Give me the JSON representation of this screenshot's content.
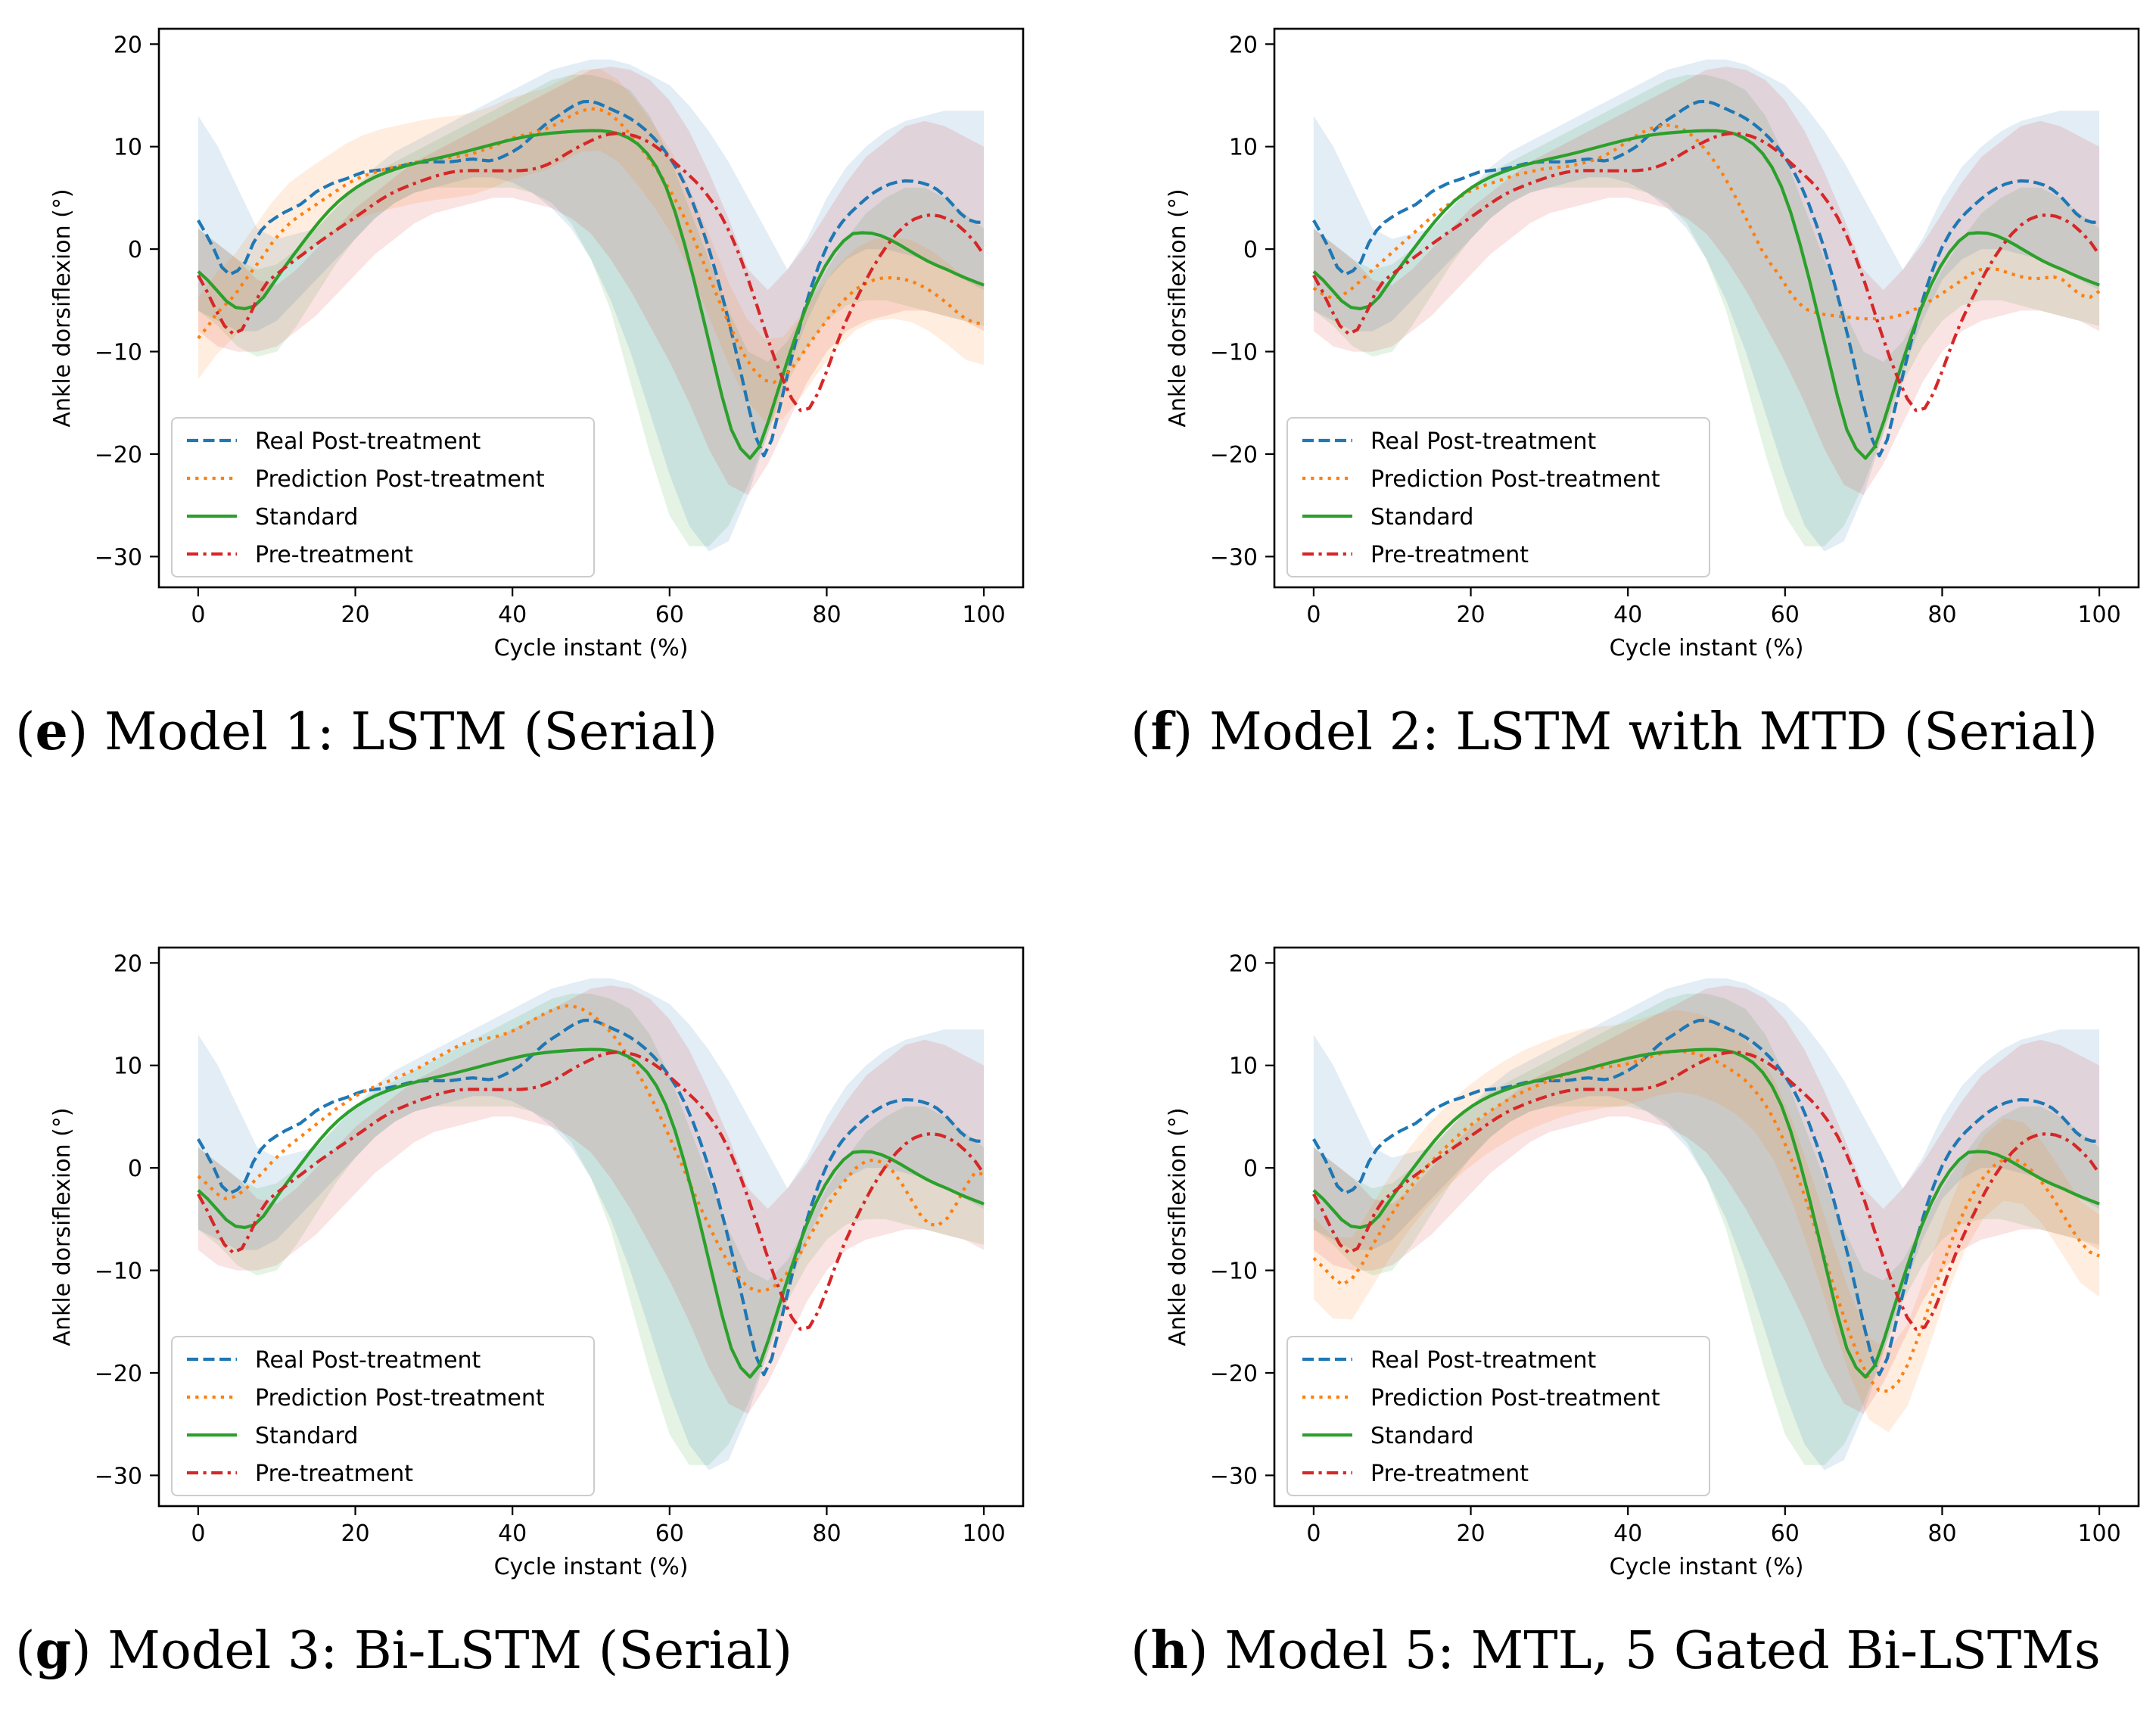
{
  "colors": {
    "real": "#1f77b4",
    "prediction": "#ff7f0e",
    "standard": "#2ca02c",
    "pre": "#d62728"
  },
  "shared": {
    "x": [
      0,
      1,
      2,
      3,
      4,
      5,
      6,
      7,
      8,
      9,
      10,
      11,
      12,
      13,
      14,
      15,
      16,
      17,
      18,
      19,
      20,
      21,
      22,
      23,
      24,
      25,
      26,
      27,
      28,
      29,
      30,
      31,
      32,
      33,
      34,
      35,
      36,
      37,
      38,
      39,
      40,
      41,
      42,
      43,
      44,
      45,
      46,
      47,
      48,
      49,
      50,
      51,
      52,
      53,
      54,
      55,
      56,
      57,
      58,
      59,
      60,
      61,
      62,
      63,
      64,
      65,
      66,
      67,
      68,
      69,
      70,
      71,
      72,
      73,
      74,
      75,
      76,
      77,
      78,
      79,
      80,
      81,
      82,
      83,
      84,
      85,
      86,
      87,
      88,
      89,
      90,
      91,
      92,
      93,
      94,
      95,
      96,
      97,
      98,
      99,
      100
    ],
    "real": [
      2.81,
      1.47,
      -0.01,
      -1.76,
      -2.48,
      -2.12,
      -1.27,
      0.57,
      1.81,
      2.61,
      3.14,
      3.6,
      3.97,
      4.36,
      4.96,
      5.58,
      6.0,
      6.38,
      6.66,
      6.91,
      7.22,
      7.5,
      7.62,
      7.71,
      7.79,
      7.94,
      8.14,
      8.34,
      8.46,
      8.51,
      8.52,
      8.5,
      8.51,
      8.6,
      8.73,
      8.78,
      8.69,
      8.61,
      8.76,
      9.1,
      9.49,
      9.97,
      10.63,
      11.36,
      12.05,
      12.6,
      13.09,
      13.62,
      14.09,
      14.39,
      14.42,
      14.2,
      13.86,
      13.5,
      13.16,
      12.74,
      12.21,
      11.58,
      10.84,
      9.98,
      8.96,
      7.73,
      6.23,
      4.44,
      2.38,
      0.05,
      -2.57,
      -5.43,
      -8.52,
      -11.81,
      -15.23,
      -18.38,
      -20.17,
      -18.61,
      -15.49,
      -12.29,
      -9.18,
      -6.31,
      -3.75,
      -1.57,
      0.21,
      1.59,
      2.67,
      3.53,
      4.26,
      4.93,
      5.51,
      5.98,
      6.33,
      6.55,
      6.66,
      6.62,
      6.48,
      6.24,
      5.84,
      5.2,
      4.37,
      3.5,
      2.88,
      2.63,
      2.58
    ],
    "standard": [
      -2.18,
      -3.02,
      -4.03,
      -5.06,
      -5.69,
      -5.82,
      -5.56,
      -4.68,
      -3.36,
      -2.06,
      -0.8,
      0.42,
      1.61,
      2.74,
      3.77,
      4.66,
      5.42,
      6.07,
      6.61,
      7.07,
      7.45,
      7.78,
      8.07,
      8.32,
      8.55,
      8.76,
      8.96,
      9.17,
      9.39,
      9.62,
      9.86,
      10.1,
      10.34,
      10.57,
      10.78,
      10.97,
      11.12,
      11.24,
      11.34,
      11.41,
      11.48,
      11.53,
      11.56,
      11.55,
      11.46,
      11.25,
      10.86,
      10.25,
      9.33,
      8.0,
      6.12,
      3.6,
      0.48,
      -3.0,
      -6.74,
      -10.57,
      -14.34,
      -17.61,
      -19.47,
      -20.41,
      -19.28,
      -16.7,
      -13.77,
      -10.9,
      -8.15,
      -5.64,
      -3.49,
      -1.71,
      -0.29,
      0.79,
      1.52,
      1.6,
      1.55,
      1.31,
      0.91,
      0.41,
      -0.13,
      -0.67,
      -1.17,
      -1.6,
      -1.98,
      -2.4,
      -2.8,
      -3.16,
      -3.51
    ],
    "pre": [
      -2.56,
      -4.12,
      -5.88,
      -7.48,
      -8.27,
      -7.87,
      -6.29,
      -4.39,
      -3.12,
      -2.45,
      -1.77,
      -1.13,
      -0.5,
      0.14,
      0.77,
      1.38,
      1.97,
      2.53,
      3.11,
      3.7,
      4.31,
      4.88,
      5.38,
      5.79,
      6.15,
      6.48,
      6.78,
      7.07,
      7.32,
      7.51,
      7.62,
      7.66,
      7.66,
      7.65,
      7.64,
      7.64,
      7.65,
      7.66,
      7.74,
      7.93,
      8.25,
      8.68,
      9.2,
      9.71,
      10.16,
      10.58,
      10.95,
      11.2,
      11.3,
      11.24,
      11.05,
      10.72,
      10.25,
      9.63,
      8.9,
      8.14,
      7.39,
      6.58,
      5.62,
      4.48,
      3.11,
      1.43,
      -0.59,
      -2.93,
      -5.5,
      -8.11,
      -10.59,
      -12.77,
      -14.59,
      -15.74,
      -15.54,
      -14.05,
      -11.9,
      -9.57,
      -7.43,
      -5.56,
      -3.84,
      -2.23,
      -0.79,
      0.46,
      1.5,
      2.33,
      2.91,
      3.24,
      3.34,
      3.21,
      2.89,
      2.35,
      1.6,
      0.66,
      -0.56
    ],
    "band_real": {
      "upper": [
        13.0,
        10.0,
        6.0,
        2.0,
        1.0,
        1.5,
        2.0,
        4.0,
        6.0,
        8.0,
        9.5,
        10.5,
        11.5,
        12.5,
        13.5,
        14.5,
        15.5,
        16.5,
        17.5,
        18.0,
        18.5,
        18.5,
        18.0,
        17.0,
        16.0,
        14.0,
        11.5,
        8.5,
        5.0,
        1.5,
        -2.0,
        1.0,
        5.0,
        8.0,
        10.0,
        11.5,
        12.5,
        13.0,
        13.5,
        13.5,
        13.5,
        13.5,
        13.5
      ],
      "lower": [
        -6.0,
        -7.0,
        -8.0,
        -8.0,
        -7.0,
        -5.0,
        -3.0,
        -1.0,
        1.0,
        3.0,
        4.5,
        5.5,
        6.0,
        6.5,
        7.0,
        7.0,
        6.5,
        5.5,
        4.0,
        2.0,
        -1.0,
        -5.0,
        -10.0,
        -16.0,
        -22.0,
        -27.0,
        -29.5,
        -28.5,
        -24.0,
        -18.0,
        -12.0,
        -7.0,
        -3.0,
        -1.0,
        0.0,
        0.0,
        -0.5,
        -1.0,
        -2.0,
        -3.0,
        -4.0,
        -5.5,
        -7.5
      ]
    },
    "band_standard": {
      "upper": [
        2.0,
        0.5,
        -1.0,
        -2.0,
        -1.5,
        0.0,
        2.0,
        4.0,
        6.0,
        7.5,
        8.5,
        9.5,
        10.5,
        11.5,
        12.5,
        13.5,
        14.5,
        15.5,
        16.5,
        17.0,
        17.0,
        16.5,
        15.5,
        13.0,
        9.0,
        4.0,
        -1.0,
        -6.0,
        -10.0,
        -11.0,
        -9.0,
        -5.5,
        -2.0,
        1.0,
        3.5,
        5.0,
        6.0,
        6.0,
        5.0,
        3.5,
        2.0,
        1.0,
        0.5
      ],
      "lower": [
        -6.0,
        -7.5,
        -9.5,
        -10.5,
        -10.0,
        -7.5,
        -4.5,
        -1.5,
        1.0,
        3.0,
        4.5,
        5.5,
        6.0,
        6.0,
        6.0,
        6.0,
        6.0,
        5.5,
        4.5,
        2.5,
        -1.0,
        -6.0,
        -13.0,
        -20.0,
        -26.0,
        -29.0,
        -29.0,
        -27.0,
        -23.0,
        -18.0,
        -13.0,
        -9.5,
        -7.0,
        -5.5,
        -5.0,
        -5.0,
        -5.5,
        -6.0,
        -6.5,
        -7.0,
        -7.5,
        -8.0,
        -8.5
      ]
    },
    "band_pre": {
      "upper": [
        2.0,
        0.5,
        -1.0,
        -3.0,
        -3.5,
        -2.0,
        0.0,
        2.0,
        4.0,
        5.5,
        7.0,
        8.5,
        9.5,
        10.5,
        11.5,
        12.5,
        13.5,
        14.5,
        15.5,
        16.5,
        17.5,
        17.8,
        17.5,
        16.5,
        14.5,
        11.5,
        7.5,
        3.0,
        -2.0,
        -4.0,
        -2.0,
        0.5,
        3.5,
        6.5,
        9.0,
        10.5,
        12.0,
        12.5,
        12.0,
        11.0,
        10.0,
        9.0,
        8.5
      ],
      "lower": [
        -8.0,
        -9.5,
        -10.0,
        -10.0,
        -9.5,
        -8.0,
        -6.5,
        -4.5,
        -2.5,
        -0.5,
        1.0,
        2.5,
        3.5,
        4.0,
        4.5,
        5.0,
        5.0,
        4.5,
        4.0,
        3.0,
        1.5,
        -1.0,
        -4.0,
        -7.5,
        -11.0,
        -15.0,
        -19.5,
        -23.0,
        -24.0,
        -21.0,
        -17.0,
        -13.0,
        -10.0,
        -8.0,
        -7.0,
        -6.5,
        -6.0,
        -6.0,
        -6.5,
        -7.0,
        -8.0,
        -9.0,
        -10.0
      ]
    },
    "band_x": [
      0,
      2.5,
      5,
      7.5,
      10,
      12.5,
      15,
      17.5,
      20,
      22.5,
      25,
      27.5,
      30,
      32.5,
      35,
      37.5,
      40,
      42.5,
      45,
      47.5,
      50,
      52.5,
      55,
      57.5,
      60,
      62.5,
      65,
      67.5,
      70,
      72.5,
      75,
      77.5,
      80,
      82.5,
      85,
      87.5,
      90,
      92.5,
      95,
      97.5,
      100,
      100,
      100
    ]
  },
  "chart_data": [
    {
      "type": "line",
      "panel_letter": "e",
      "caption": ") Model 1: LSTM (Serial)",
      "xlabel": "Cycle instant (%)",
      "ylabel": "Ankle dorsiflexion (°)",
      "xlim": [
        -5,
        105
      ],
      "ylim": [
        -33,
        21.5
      ],
      "xticks": [
        0,
        20,
        40,
        60,
        80,
        100
      ],
      "yticks": [
        -30,
        -20,
        -10,
        0,
        10,
        20
      ],
      "tick_labels_x": [
        "0",
        "20",
        "40",
        "60",
        "80",
        "100"
      ],
      "tick_labels_y": [
        "−30",
        "−20",
        "−10",
        "0",
        "10",
        "20"
      ],
      "legend": [
        "Real Post-treatment",
        "Prediction Post-treatment",
        "Standard",
        "Pre-treatment"
      ],
      "legend_position": "lower-left",
      "prediction": [
        -8.7,
        -7.6,
        -6.3,
        -5.4,
        -4.5,
        -3.2,
        -2.0,
        -0.8,
        0.5,
        1.6,
        2.5,
        3.2,
        3.8,
        4.4,
        5.0,
        5.6,
        6.2,
        6.7,
        7.1,
        7.4,
        7.7,
        7.9,
        8.1,
        8.3,
        8.5,
        8.7,
        8.8,
        8.9,
        9.0,
        9.1,
        9.3,
        9.6,
        9.9,
        10.3,
        10.7,
        11.0,
        11.2,
        11.4,
        11.7,
        12.1,
        12.6,
        13.1,
        13.5,
        13.7,
        13.6,
        13.2,
        12.5,
        11.5,
        10.4,
        9.2,
        8.0,
        6.7,
        5.2,
        3.5,
        1.5,
        -0.6,
        -2.8,
        -5.0,
        -7.1,
        -9.0,
        -10.7,
        -12.0,
        -12.8,
        -13.0,
        -12.6,
        -11.6,
        -10.4,
        -9.1,
        -7.9,
        -6.7,
        -5.6,
        -4.7,
        -3.9,
        -3.4,
        -3.0,
        -2.8,
        -2.8,
        -2.9,
        -3.1,
        -3.5,
        -4.0,
        -4.6,
        -5.3,
        -6.1,
        -6.8,
        -7.2,
        -7.3
      ],
      "bands": {
        "real": true,
        "prediction": true,
        "standard": true,
        "pre": true
      }
    },
    {
      "type": "line",
      "panel_letter": "f",
      "caption": ") Model 2: LSTM with MTD (Serial)",
      "xlabel": "Cycle instant (%)",
      "ylabel": "Ankle dorsiflexion (°)",
      "xlim": [
        -5,
        105
      ],
      "ylim": [
        -33,
        21.5
      ],
      "xticks": [
        0,
        20,
        40,
        60,
        80,
        100
      ],
      "yticks": [
        -30,
        -20,
        -10,
        0,
        10,
        20
      ],
      "tick_labels_x": [
        "0",
        "20",
        "40",
        "60",
        "80",
        "100"
      ],
      "tick_labels_y": [
        "−30",
        "−20",
        "−10",
        "0",
        "10",
        "20"
      ],
      "legend": [
        "Real Post-treatment",
        "Prediction Post-treatment",
        "Standard",
        "Pre-treatment"
      ],
      "legend_position": "lower-left",
      "prediction": [
        -3.8,
        -4.4,
        -4.8,
        -4.6,
        -4.0,
        -3.2,
        -2.4,
        -1.6,
        -0.8,
        0.0,
        0.8,
        1.6,
        2.4,
        3.2,
        3.9,
        4.5,
        5.1,
        5.6,
        6.0,
        6.3,
        6.6,
        6.9,
        7.2,
        7.4,
        7.6,
        7.8,
        7.9,
        8.0,
        8.1,
        8.3,
        8.5,
        8.8,
        9.2,
        9.7,
        10.3,
        10.9,
        11.4,
        11.8,
        12.0,
        12.1,
        11.9,
        11.4,
        10.6,
        9.6,
        8.4,
        7.0,
        5.4,
        3.6,
        1.8,
        0.0,
        -1.4,
        -2.6,
        -4.0,
        -5.2,
        -5.9,
        -6.2,
        -6.4,
        -6.5,
        -6.6,
        -6.7,
        -6.8,
        -6.8,
        -6.8,
        -6.7,
        -6.5,
        -6.2,
        -5.8,
        -5.3,
        -4.8,
        -4.2,
        -3.6,
        -3.0,
        -2.4,
        -2.0,
        -1.9,
        -2.0,
        -2.3,
        -2.6,
        -2.8,
        -2.9,
        -2.8,
        -2.7,
        -3.0,
        -3.8,
        -4.5,
        -4.7,
        -4.1
      ],
      "bands": {
        "real": true,
        "prediction": false,
        "standard": true,
        "pre": true
      }
    },
    {
      "type": "line",
      "panel_letter": "g",
      "caption": ") Model 3: Bi-LSTM (Serial)",
      "xlabel": "Cycle instant (%)",
      "ylabel": "Ankle dorsiflexion (°)",
      "xlim": [
        -5,
        105
      ],
      "ylim": [
        -33,
        21.5
      ],
      "xticks": [
        0,
        20,
        40,
        60,
        80,
        100
      ],
      "yticks": [
        -30,
        -20,
        -10,
        0,
        10,
        20
      ],
      "tick_labels_x": [
        "0",
        "20",
        "40",
        "60",
        "80",
        "100"
      ],
      "tick_labels_y": [
        "−30",
        "−20",
        "−10",
        "0",
        "10",
        "20"
      ],
      "legend": [
        "Real Post-treatment",
        "Prediction Post-treatment",
        "Standard",
        "Pre-treatment"
      ],
      "legend_position": "lower-left",
      "prediction": [
        -0.8,
        -1.6,
        -2.5,
        -3.0,
        -2.8,
        -2.2,
        -1.4,
        -0.5,
        0.5,
        1.4,
        2.2,
        2.9,
        3.6,
        4.3,
        5.0,
        5.7,
        6.3,
        6.9,
        7.4,
        7.8,
        8.2,
        8.5,
        8.9,
        9.3,
        9.7,
        10.2,
        10.7,
        11.2,
        11.7,
        12.1,
        12.4,
        12.6,
        12.7,
        12.9,
        13.2,
        13.6,
        14.1,
        14.6,
        15.1,
        15.5,
        15.8,
        15.8,
        15.5,
        15.0,
        14.3,
        13.4,
        12.3,
        11.0,
        9.5,
        7.9,
        6.1,
        4.2,
        2.2,
        0.2,
        -1.9,
        -3.9,
        -5.8,
        -7.6,
        -9.2,
        -10.5,
        -11.5,
        -12.0,
        -12.0,
        -11.6,
        -10.8,
        -9.6,
        -8.2,
        -6.6,
        -5.0,
        -3.5,
        -2.2,
        -1.0,
        0.0,
        0.6,
        0.8,
        0.5,
        -0.3,
        -1.5,
        -3.0,
        -4.5,
        -5.5,
        -5.6,
        -4.9,
        -3.5,
        -1.8,
        -0.5,
        -0.6
      ],
      "bands": {
        "real": true,
        "prediction": false,
        "standard": true,
        "pre": true
      }
    },
    {
      "type": "line",
      "panel_letter": "h",
      "caption": ") Model 5: MTL, 5 Gated Bi-LSTMs",
      "xlabel": "Cycle instant (%)",
      "ylabel": "Ankle dorsiflexion (°)",
      "xlim": [
        -5,
        105
      ],
      "ylim": [
        -33,
        21.5
      ],
      "xticks": [
        0,
        20,
        40,
        60,
        80,
        100
      ],
      "yticks": [
        -30,
        -20,
        -10,
        0,
        10,
        20
      ],
      "tick_labels_x": [
        "0",
        "20",
        "40",
        "60",
        "80",
        "100"
      ],
      "tick_labels_y": [
        "−30",
        "−20",
        "−10",
        "0",
        "10",
        "20"
      ],
      "legend": [
        "Real Post-treatment",
        "Prediction Post-treatment",
        "Standard",
        "Pre-treatment"
      ],
      "legend_position": "lower-left",
      "prediction": [
        -8.8,
        -9.7,
        -10.7,
        -11.4,
        -10.8,
        -9.5,
        -7.8,
        -6.2,
        -4.7,
        -3.3,
        -2.0,
        -0.8,
        0.3,
        1.3,
        2.2,
        3.1,
        3.9,
        4.6,
        5.3,
        5.9,
        6.5,
        7.0,
        7.5,
        7.9,
        8.3,
        8.7,
        9.0,
        9.3,
        9.5,
        9.7,
        9.8,
        9.9,
        10.0,
        10.2,
        10.5,
        10.8,
        11.1,
        11.3,
        11.4,
        11.3,
        11.1,
        10.8,
        10.4,
        9.9,
        9.3,
        8.6,
        7.6,
        6.4,
        4.8,
        2.8,
        0.5,
        -2.1,
        -4.9,
        -7.8,
        -10.7,
        -13.6,
        -16.3,
        -18.7,
        -20.6,
        -21.7,
        -21.8,
        -20.9,
        -19.2,
        -16.8,
        -14.1,
        -11.3,
        -8.6,
        -6.1,
        -4.0,
        -2.2,
        -0.8,
        0.2,
        0.8,
        0.9,
        0.5,
        -0.3,
        -1.4,
        -2.7,
        -4.2,
        -5.8,
        -7.2,
        -8.2,
        -8.6
      ],
      "bands": {
        "real": true,
        "prediction": true,
        "standard": true,
        "pre": true
      }
    }
  ]
}
